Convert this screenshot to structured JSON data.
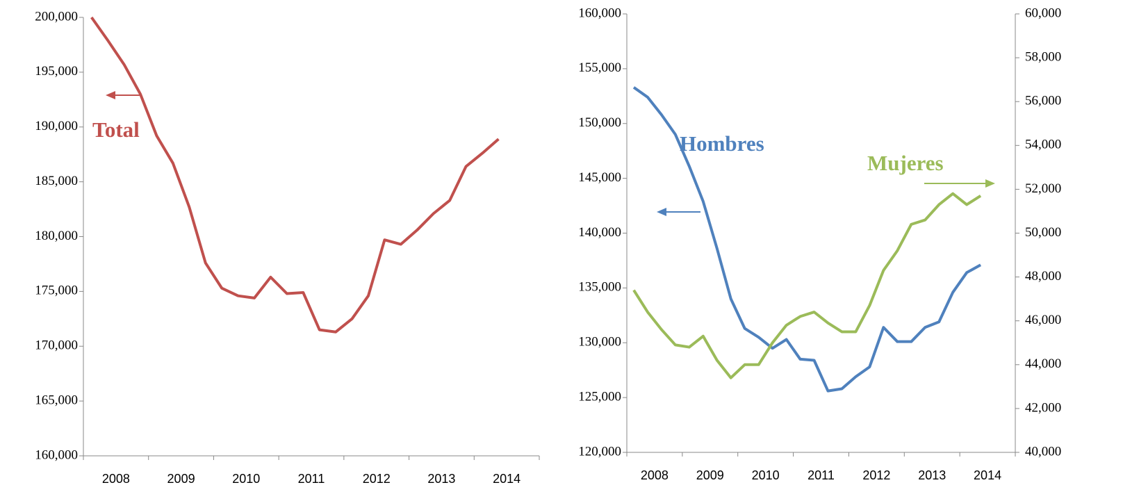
{
  "chart_data": [
    {
      "type": "line",
      "categories": [
        "2008",
        null,
        null,
        null,
        "2009",
        null,
        null,
        null,
        "2010",
        null,
        null,
        null,
        "2011",
        null,
        null,
        null,
        "2012",
        null,
        null,
        null,
        "2013",
        null,
        null,
        null,
        "2014",
        null,
        null,
        null
      ],
      "series": [
        {
          "name": "Total",
          "color": "#c0504d",
          "values": [
            200000,
            197900,
            195700,
            193000,
            189200,
            186700,
            182700,
            177600,
            175300,
            174600,
            174400,
            176300,
            174800,
            174900,
            171500,
            171300,
            172500,
            174600,
            179700,
            179300,
            180600,
            182100,
            183300,
            186400,
            187600,
            188900,
            null,
            null
          ]
        }
      ],
      "ylim": [
        160000,
        200000
      ],
      "yticks": [
        {
          "value": 160000,
          "label": "160,000"
        },
        {
          "value": 165000,
          "label": "165,000"
        },
        {
          "value": 170000,
          "label": "170,000"
        },
        {
          "value": 175000,
          "label": "175,000"
        },
        {
          "value": 180000,
          "label": "180,000"
        },
        {
          "value": 185000,
          "label": "185,000"
        },
        {
          "value": 190000,
          "label": "190,000"
        },
        {
          "value": 195000,
          "label": "195,000"
        },
        {
          "value": 200000,
          "label": "200,000"
        }
      ]
    },
    {
      "type": "line",
      "categories": [
        "2008",
        null,
        null,
        null,
        "2009",
        null,
        null,
        null,
        "2010",
        null,
        null,
        null,
        "2011",
        null,
        null,
        null,
        "2012",
        null,
        null,
        null,
        "2013",
        null,
        null,
        null,
        "2014",
        null,
        null,
        null
      ],
      "series": [
        {
          "name": "Hombres",
          "color": "#4f81bd",
          "values": [
            153300,
            152400,
            150800,
            149000,
            146100,
            142900,
            138600,
            134000,
            131300,
            130500,
            129500,
            130300,
            128500,
            128400,
            125600,
            125800,
            126900,
            127800,
            131400,
            130100,
            130100,
            131400,
            131900,
            134600,
            136400,
            137100,
            null,
            null
          ]
        },
        {
          "name": "Mujeres",
          "color": "#9bbb59",
          "axis": "y2",
          "values": [
            47400,
            46400,
            45600,
            44900,
            44800,
            45300,
            44200,
            43400,
            44000,
            44000,
            45000,
            45800,
            46200,
            46400,
            45900,
            45500,
            45500,
            46700,
            48300,
            49200,
            50400,
            50600,
            51300,
            51800,
            51300,
            51700,
            null,
            null
          ]
        }
      ],
      "ylim": [
        120000,
        160000
      ],
      "yticks": [
        {
          "value": 120000,
          "label": "120,000"
        },
        {
          "value": 125000,
          "label": "125,000"
        },
        {
          "value": 130000,
          "label": "130,000"
        },
        {
          "value": 135000,
          "label": "135,000"
        },
        {
          "value": 140000,
          "label": "140,000"
        },
        {
          "value": 145000,
          "label": "145,000"
        },
        {
          "value": 150000,
          "label": "150,000"
        },
        {
          "value": 155000,
          "label": "155,000"
        },
        {
          "value": 160000,
          "label": "160,000"
        }
      ],
      "y2lim": [
        40000,
        60000
      ],
      "y2ticks": [
        {
          "value": 40000,
          "label": "40,000"
        },
        {
          "value": 42000,
          "label": "42,000"
        },
        {
          "value": 44000,
          "label": "44,000"
        },
        {
          "value": 46000,
          "label": "46,000"
        },
        {
          "value": 48000,
          "label": "48,000"
        },
        {
          "value": 50000,
          "label": "50,000"
        },
        {
          "value": 52000,
          "label": "52,000"
        },
        {
          "value": 54000,
          "label": "54,000"
        },
        {
          "value": 56000,
          "label": "56,000"
        },
        {
          "value": 58000,
          "label": "58,000"
        },
        {
          "value": 60000,
          "label": "60,000"
        }
      ]
    }
  ]
}
